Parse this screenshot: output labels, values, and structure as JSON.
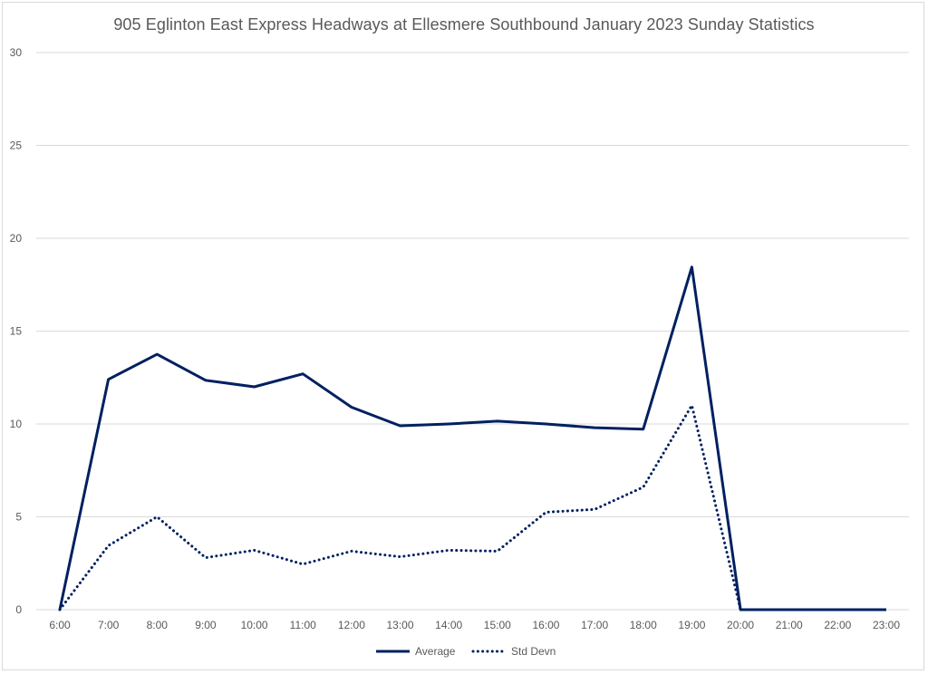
{
  "chart_data": {
    "type": "line",
    "title": "905 Eglinton East Express Headways at Ellesmere Southbound January 2023 Sunday Statistics",
    "xlabel": "",
    "ylabel": "",
    "categories": [
      "6:00",
      "7:00",
      "8:00",
      "9:00",
      "10:00",
      "11:00",
      "12:00",
      "13:00",
      "14:00",
      "15:00",
      "16:00",
      "17:00",
      "18:00",
      "19:00",
      "20:00",
      "21:00",
      "22:00",
      "23:00"
    ],
    "yticks": [
      "0",
      "5",
      "10",
      "15",
      "20",
      "25",
      "30"
    ],
    "ylim": [
      0,
      30
    ],
    "grid": true,
    "legend_position": "bottom",
    "series": [
      {
        "name": "Average",
        "style": "solid",
        "color": "#002060",
        "values": [
          0,
          12.4,
          13.75,
          12.35,
          12.0,
          12.7,
          10.9,
          9.9,
          10.0,
          10.15,
          10.0,
          9.8,
          9.72,
          18.45,
          0,
          0,
          0,
          0
        ]
      },
      {
        "name": "Std Devn",
        "style": "dotted",
        "color": "#002060",
        "values": [
          0,
          3.45,
          5.0,
          2.8,
          3.2,
          2.45,
          3.15,
          2.85,
          3.2,
          3.15,
          5.25,
          5.4,
          6.6,
          11.0,
          0,
          null,
          null,
          null
        ]
      }
    ]
  }
}
